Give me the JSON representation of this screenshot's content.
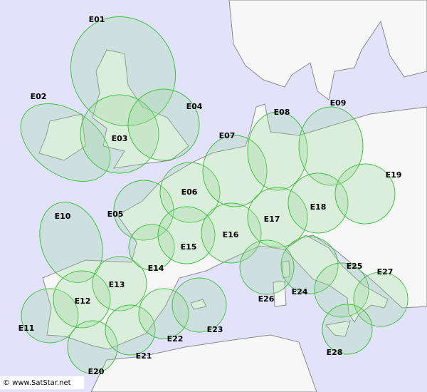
{
  "regions": [
    {
      "label": "E01"
    },
    {
      "label": "E02"
    },
    {
      "label": "E03"
    },
    {
      "label": "E04"
    },
    {
      "label": "E05"
    },
    {
      "label": "E06"
    },
    {
      "label": "E07"
    },
    {
      "label": "E08"
    },
    {
      "label": "E09"
    },
    {
      "label": "E10"
    },
    {
      "label": "E11"
    },
    {
      "label": "E12"
    },
    {
      "label": "E13"
    },
    {
      "label": "E14"
    },
    {
      "label": "E15"
    },
    {
      "label": "E16"
    },
    {
      "label": "E17"
    },
    {
      "label": "E18"
    },
    {
      "label": "E19"
    },
    {
      "label": "E20"
    },
    {
      "label": "E21"
    },
    {
      "label": "E22"
    },
    {
      "label": "E23"
    },
    {
      "label": "E24"
    },
    {
      "label": "E25"
    },
    {
      "label": "E26"
    },
    {
      "label": "E27"
    },
    {
      "label": "E28"
    }
  ],
  "credit": "© www.SatStar.net"
}
